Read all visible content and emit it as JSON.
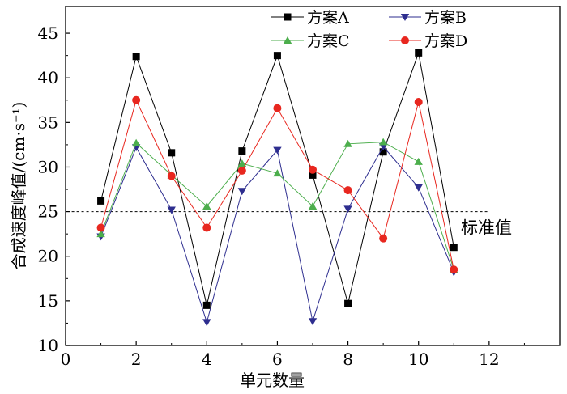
{
  "chart_data": {
    "type": "line",
    "title": "",
    "xlabel": "单元数量",
    "ylabel": "合成速度峰值/(cm·s⁻¹)",
    "xlim": [
      0,
      14
    ],
    "ylim": [
      10,
      48
    ],
    "xticks": [
      0,
      2,
      4,
      6,
      8,
      10,
      12
    ],
    "yticks": [
      10,
      15,
      20,
      25,
      30,
      35,
      40,
      45
    ],
    "grid": false,
    "legend_position": "top",
    "x": [
      1,
      2,
      3,
      4,
      5,
      6,
      7,
      8,
      9,
      10,
      11
    ],
    "series": [
      {
        "name": "方案A",
        "color": "#000000",
        "marker": "square",
        "values": [
          26.2,
          42.4,
          31.6,
          14.5,
          31.8,
          42.5,
          29.1,
          14.7,
          31.7,
          42.8,
          21.0
        ]
      },
      {
        "name": "方案B",
        "color": "#2e2e8f",
        "marker": "triangle-down",
        "values": [
          22.2,
          32.2,
          25.2,
          12.6,
          27.3,
          31.9,
          12.7,
          25.3,
          32.3,
          27.7,
          18.2
        ]
      },
      {
        "name": "方案C",
        "color": "#4cae4c",
        "marker": "triangle-up",
        "values": [
          22.5,
          32.7,
          29.1,
          25.6,
          30.4,
          29.3,
          25.6,
          32.6,
          32.8,
          30.6,
          18.5
        ]
      },
      {
        "name": "方案D",
        "color": "#e8271f",
        "marker": "circle",
        "values": [
          23.2,
          37.5,
          29.0,
          23.2,
          29.6,
          36.6,
          29.7,
          27.4,
          22.0,
          37.3,
          18.5
        ]
      }
    ],
    "reference_line": {
      "label": "标准值",
      "value": 25
    }
  }
}
